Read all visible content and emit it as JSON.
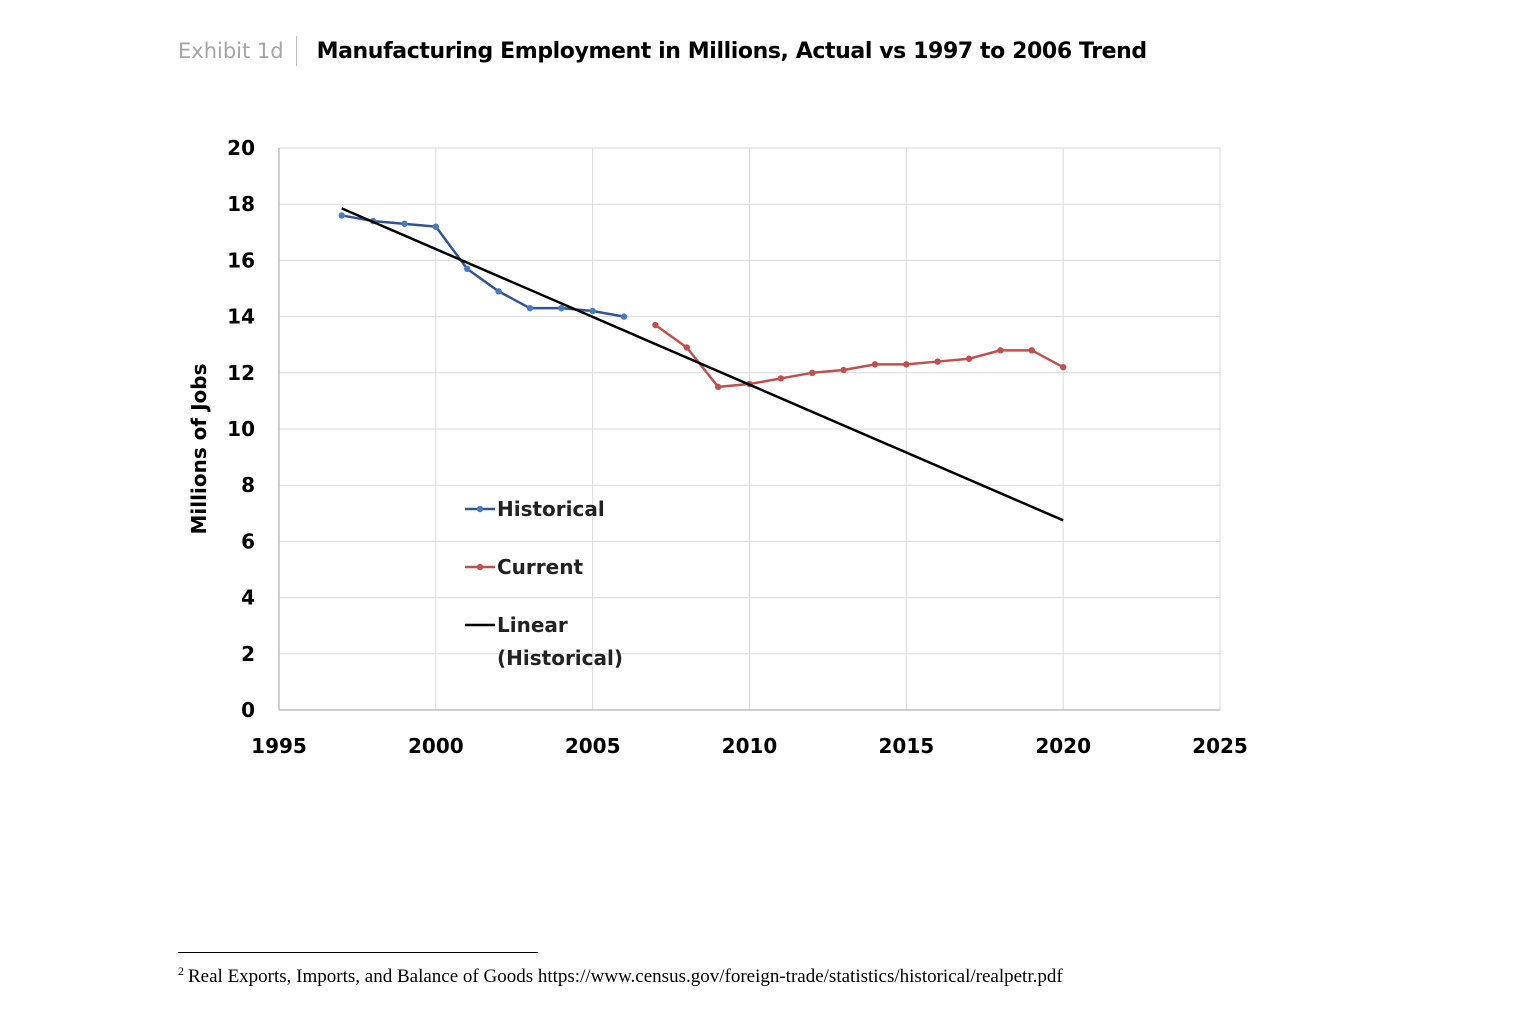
{
  "header": {
    "exhibit_label": "Exhibit 1d",
    "title": "Manufacturing Employment in Millions, Actual vs 1997 to 2006 Trend"
  },
  "chart_data": {
    "type": "line",
    "title": "Manufacturing Employment in Millions, Actual vs 1997 to 2006 Trend",
    "xlabel": "",
    "ylabel": "Millions of Jobs",
    "xlim": [
      1995,
      2025
    ],
    "ylim": [
      0,
      20
    ],
    "xticks": [
      1995,
      2000,
      2005,
      2010,
      2015,
      2020,
      2025
    ],
    "yticks": [
      0,
      2,
      4,
      6,
      8,
      10,
      12,
      14,
      16,
      18,
      20
    ],
    "grid": true,
    "legend_position": "center-left",
    "series": [
      {
        "name": "Historical",
        "color": "#2f5597",
        "marker_color": "#4a7abf",
        "x": [
          1997,
          1998,
          1999,
          2000,
          2001,
          2002,
          2003,
          2004,
          2005,
          2006
        ],
        "values": [
          17.6,
          17.4,
          17.3,
          17.2,
          15.7,
          14.9,
          14.3,
          14.3,
          14.2,
          14.0
        ]
      },
      {
        "name": "Current",
        "color": "#c0504d",
        "x": [
          2007,
          2008,
          2009,
          2010,
          2011,
          2012,
          2013,
          2014,
          2015,
          2016,
          2017,
          2018,
          2019,
          2020
        ],
        "values": [
          13.7,
          12.9,
          11.5,
          11.6,
          11.8,
          12.0,
          12.1,
          12.3,
          12.3,
          12.4,
          12.5,
          12.8,
          12.8,
          12.2
        ]
      },
      {
        "name": "Linear",
        "name_line2": "(Historical)",
        "color": "#000000",
        "x": [
          1997,
          2020
        ],
        "values": [
          17.85,
          6.75
        ]
      }
    ]
  },
  "footnote": {
    "marker": "2",
    "text": "Real Exports, Imports, and Balance of Goods https://www.census.gov/foreign-trade/statistics/historical/realpetr.pdf"
  }
}
